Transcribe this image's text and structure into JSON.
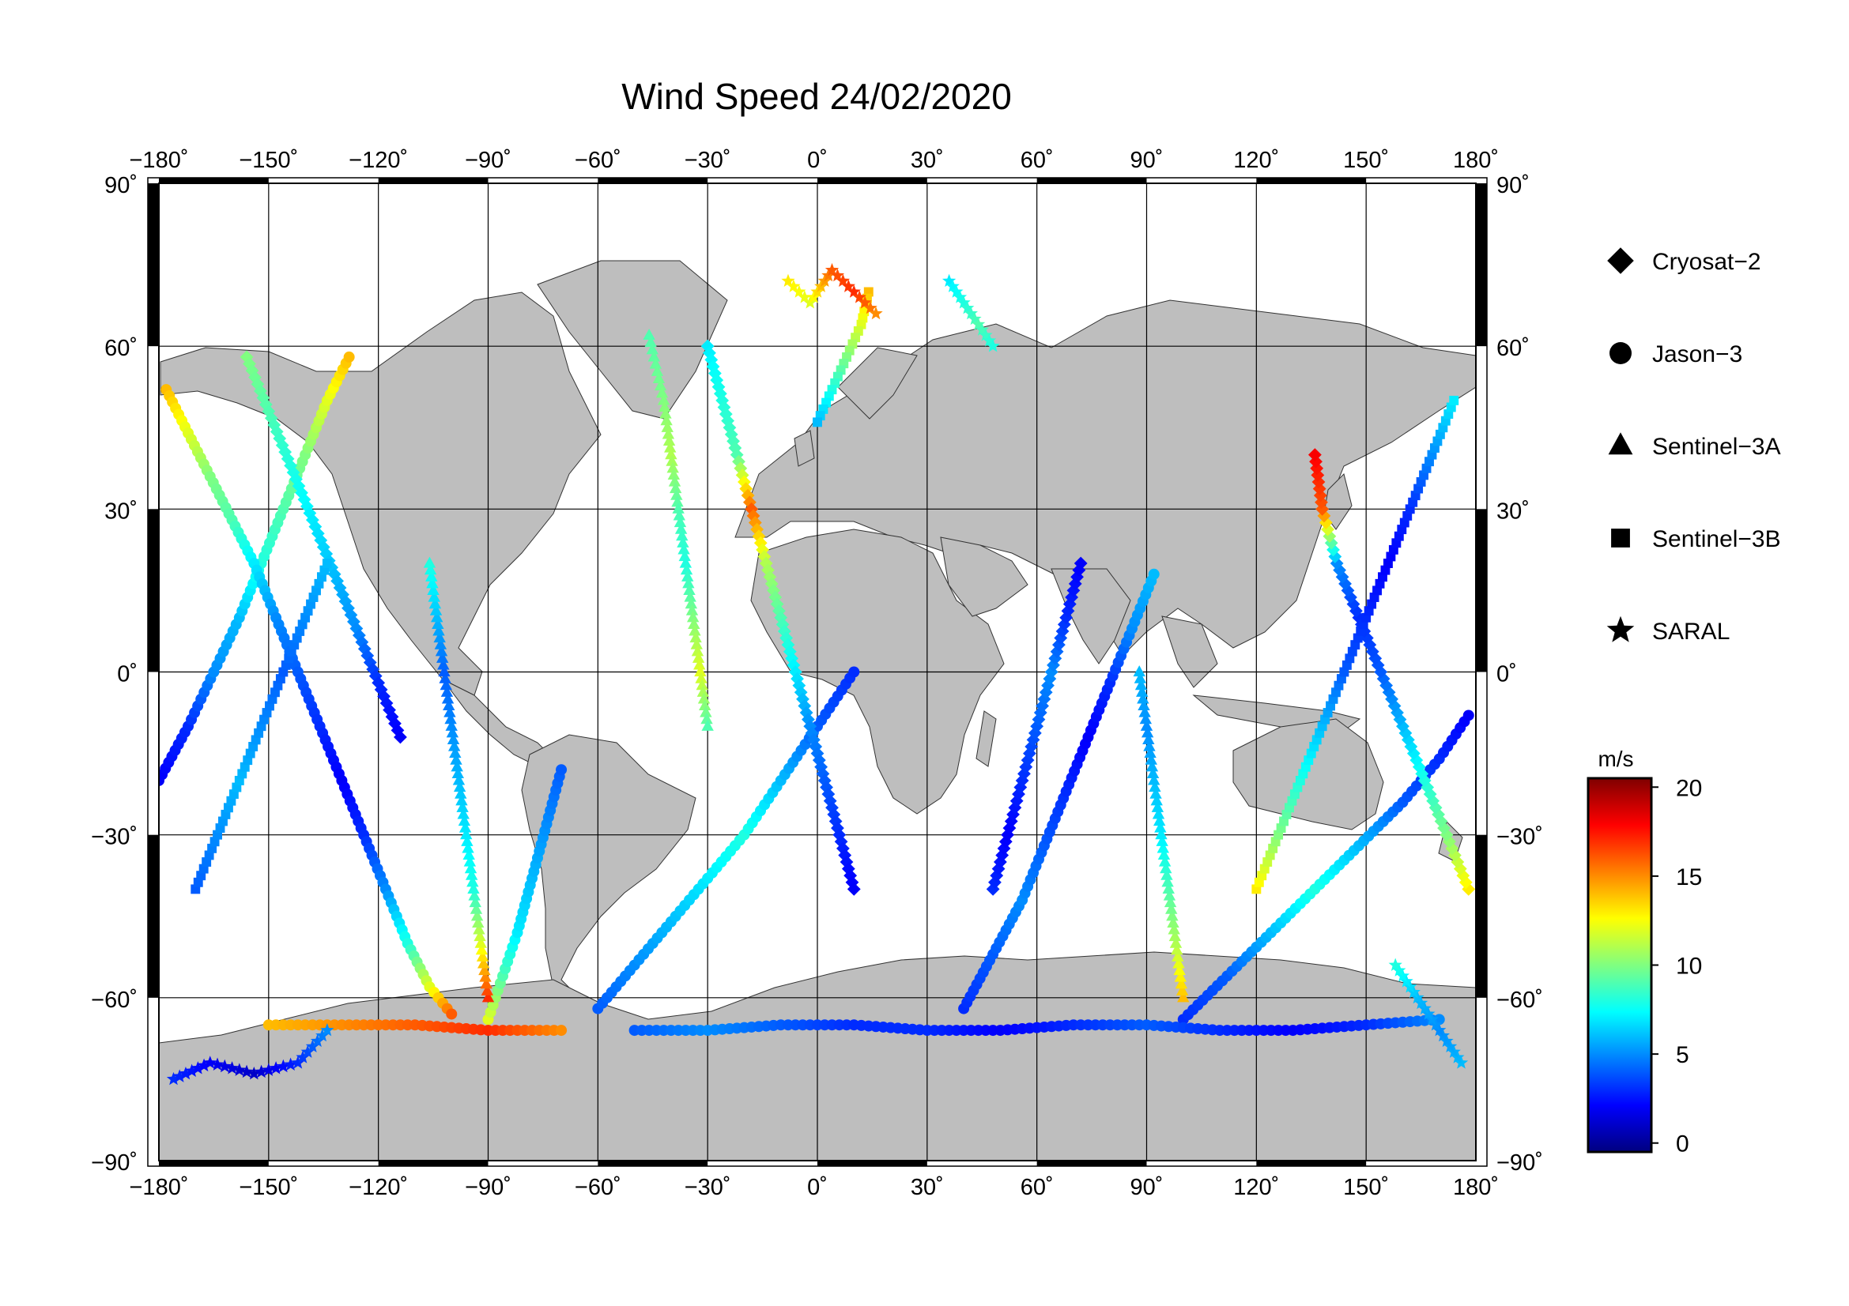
{
  "title": "Wind Speed 24/02/2020",
  "axes": {
    "lon_ticks": [
      "−180˚",
      "−150˚",
      "−120˚",
      "−90˚",
      "−60˚",
      "−30˚",
      "0˚",
      "30˚",
      "60˚",
      "90˚",
      "120˚",
      "150˚",
      "180˚"
    ],
    "lon_values": [
      -180,
      -150,
      -120,
      -90,
      -60,
      -30,
      0,
      30,
      60,
      90,
      120,
      150,
      180
    ],
    "lat_ticks": [
      "90˚",
      "60˚",
      "30˚",
      "0˚",
      "−30˚",
      "−60˚",
      "−90˚"
    ],
    "lat_values": [
      90,
      60,
      30,
      0,
      -30,
      -60,
      -90
    ],
    "lon_range": [
      -180,
      180
    ],
    "lat_range": [
      -90,
      90
    ],
    "grid": true
  },
  "legend": {
    "placement": "right",
    "items": [
      {
        "label": "Cryosat−2",
        "marker": "diamond"
      },
      {
        "label": "Jason−3",
        "marker": "circle"
      },
      {
        "label": "Sentinel−3A",
        "marker": "triangle"
      },
      {
        "label": "Sentinel−3B",
        "marker": "square"
      },
      {
        "label": "SARAL",
        "marker": "star"
      }
    ]
  },
  "colorbar": {
    "unit": "m/s",
    "ticks": [
      "0",
      "5",
      "10",
      "15",
      "20"
    ],
    "tick_values": [
      0,
      5,
      10,
      15,
      20
    ],
    "range": [
      -0.5,
      20.5
    ],
    "colormap": [
      "#00007f",
      "#0000ff",
      "#0080ff",
      "#00ffff",
      "#80ff80",
      "#ffff00",
      "#ff8000",
      "#ff0000",
      "#7f0000"
    ]
  },
  "colors": {
    "land": "#bebebe",
    "ocean": "#ffffff",
    "grid": "#000000",
    "frame": "#000000"
  },
  "chart_data": {
    "type": "scatter",
    "projection": "equirectangular",
    "x_label": "",
    "y_label": "",
    "tracks": [
      {
        "satellite": "Jason-3",
        "marker": "circle",
        "points": [
          [
            -180,
            -20,
            2
          ],
          [
            -172,
            -10,
            3
          ],
          [
            -165,
            0,
            5
          ],
          [
            -158,
            10,
            6
          ],
          [
            -152,
            20,
            8
          ],
          [
            -146,
            30,
            9
          ],
          [
            -140,
            40,
            10
          ],
          [
            -134,
            50,
            12
          ],
          [
            -128,
            58,
            14
          ]
        ]
      },
      {
        "satellite": "Jason-3",
        "marker": "circle",
        "points": [
          [
            -178,
            52,
            14
          ],
          [
            -172,
            44,
            12
          ],
          [
            -166,
            36,
            10
          ],
          [
            -160,
            28,
            9
          ],
          [
            -154,
            20,
            7
          ],
          [
            -148,
            10,
            5
          ],
          [
            -142,
            0,
            4
          ],
          [
            -136,
            -10,
            3
          ],
          [
            -130,
            -20,
            2
          ],
          [
            -124,
            -30,
            3
          ],
          [
            -118,
            -40,
            5
          ],
          [
            -112,
            -50,
            8
          ],
          [
            -106,
            -58,
            12
          ],
          [
            -100,
            -63,
            16
          ]
        ]
      },
      {
        "satellite": "Jason-3",
        "marker": "circle",
        "points": [
          [
            -90,
            -64,
            12
          ],
          [
            -86,
            -56,
            9
          ],
          [
            -82,
            -48,
            7
          ],
          [
            -78,
            -38,
            6
          ],
          [
            -74,
            -28,
            5
          ],
          [
            -70,
            -18,
            4
          ]
        ]
      },
      {
        "satellite": "Jason-3",
        "marker": "circle",
        "points": [
          [
            -60,
            -62,
            4
          ],
          [
            -50,
            -54,
            5
          ],
          [
            -40,
            -46,
            6
          ],
          [
            -30,
            -38,
            7
          ],
          [
            -20,
            -30,
            8
          ],
          [
            -10,
            -20,
            6
          ],
          [
            0,
            -10,
            4
          ],
          [
            10,
            0,
            3
          ]
        ]
      },
      {
        "satellite": "Jason-3",
        "marker": "circle",
        "points": [
          [
            40,
            -62,
            3
          ],
          [
            48,
            -52,
            4
          ],
          [
            56,
            -42,
            5
          ],
          [
            62,
            -32,
            4
          ],
          [
            68,
            -22,
            3
          ],
          [
            74,
            -12,
            2
          ],
          [
            80,
            -2,
            3
          ],
          [
            86,
            8,
            5
          ],
          [
            92,
            18,
            6
          ]
        ]
      },
      {
        "satellite": "Jason-3",
        "marker": "circle",
        "points": [
          [
            100,
            -64,
            3
          ],
          [
            112,
            -56,
            4
          ],
          [
            124,
            -48,
            6
          ],
          [
            136,
            -40,
            8
          ],
          [
            148,
            -32,
            6
          ],
          [
            160,
            -24,
            4
          ],
          [
            170,
            -16,
            3
          ],
          [
            178,
            -8,
            2
          ]
        ]
      },
      {
        "satellite": "Jason-3",
        "marker": "circle",
        "points": [
          [
            -150,
            -65,
            14
          ],
          [
            -130,
            -65,
            15
          ],
          [
            -110,
            -65,
            16
          ],
          [
            -90,
            -66,
            17
          ],
          [
            -70,
            -66,
            15
          ]
        ]
      },
      {
        "satellite": "Jason-3",
        "marker": "circle",
        "points": [
          [
            -50,
            -66,
            4
          ],
          [
            -30,
            -66,
            5
          ],
          [
            -10,
            -65,
            4
          ],
          [
            10,
            -65,
            3
          ],
          [
            30,
            -66,
            3
          ],
          [
            50,
            -66,
            2
          ],
          [
            70,
            -65,
            3
          ],
          [
            90,
            -65,
            4
          ],
          [
            110,
            -66,
            3
          ],
          [
            130,
            -66,
            2
          ],
          [
            150,
            -65,
            3
          ],
          [
            170,
            -64,
            5
          ]
        ]
      },
      {
        "satellite": "Cryosat-2",
        "marker": "diamond",
        "points": [
          [
            -156,
            58,
            10
          ],
          [
            -150,
            48,
            9
          ],
          [
            -144,
            38,
            8
          ],
          [
            -138,
            28,
            7
          ],
          [
            -132,
            18,
            6
          ],
          [
            -126,
            8,
            5
          ],
          [
            -120,
            -2,
            3
          ],
          [
            -114,
            -12,
            2
          ]
        ]
      },
      {
        "satellite": "Cryosat-2",
        "marker": "diamond",
        "points": [
          [
            -30,
            60,
            7
          ],
          [
            -26,
            50,
            8
          ],
          [
            -22,
            40,
            9
          ],
          [
            -18,
            30,
            16
          ],
          [
            -14,
            20,
            11
          ],
          [
            -10,
            10,
            9
          ],
          [
            -6,
            0,
            7
          ],
          [
            -2,
            -10,
            5
          ],
          [
            2,
            -20,
            4
          ],
          [
            6,
            -30,
            3
          ],
          [
            10,
            -40,
            2
          ]
        ]
      },
      {
        "satellite": "Cryosat-2",
        "marker": "diamond",
        "points": [
          [
            48,
            -40,
            3
          ],
          [
            52,
            -30,
            2
          ],
          [
            56,
            -20,
            3
          ],
          [
            60,
            -10,
            4
          ],
          [
            64,
            0,
            5
          ],
          [
            68,
            10,
            3
          ],
          [
            72,
            20,
            2
          ]
        ]
      },
      {
        "satellite": "Cryosat-2",
        "marker": "diamond",
        "points": [
          [
            178,
            -40,
            13
          ],
          [
            172,
            -30,
            10
          ],
          [
            166,
            -20,
            8
          ],
          [
            160,
            -10,
            6
          ],
          [
            154,
            0,
            4
          ],
          [
            148,
            10,
            3
          ],
          [
            142,
            20,
            5
          ],
          [
            138,
            30,
            16
          ],
          [
            136,
            40,
            18
          ]
        ]
      },
      {
        "satellite": "Sentinel-3A",
        "marker": "triangle",
        "points": [
          [
            -90,
            -60,
            17
          ],
          [
            -92,
            -50,
            12
          ],
          [
            -94,
            -40,
            8
          ],
          [
            -96,
            -30,
            7
          ],
          [
            -98,
            -20,
            6
          ],
          [
            -100,
            -10,
            5
          ],
          [
            -102,
            0,
            4
          ],
          [
            -104,
            10,
            6
          ],
          [
            -106,
            20,
            8
          ]
        ]
      },
      {
        "satellite": "Sentinel-3A",
        "marker": "triangle",
        "points": [
          [
            -46,
            62,
            9
          ],
          [
            -42,
            50,
            10
          ],
          [
            -40,
            40,
            11
          ],
          [
            -38,
            30,
            9
          ],
          [
            -36,
            20,
            8
          ],
          [
            -34,
            10,
            10
          ],
          [
            -32,
            0,
            12
          ],
          [
            -30,
            -10,
            9
          ]
        ]
      },
      {
        "satellite": "Sentinel-3A",
        "marker": "triangle",
        "points": [
          [
            100,
            -60,
            14
          ],
          [
            98,
            -50,
            11
          ],
          [
            96,
            -40,
            9
          ],
          [
            94,
            -30,
            7
          ],
          [
            92,
            -20,
            6
          ],
          [
            90,
            -10,
            5
          ],
          [
            88,
            0,
            6
          ]
        ]
      },
      {
        "satellite": "Sentinel-3B",
        "marker": "square",
        "points": [
          [
            -170,
            -40,
            4
          ],
          [
            -164,
            -30,
            5
          ],
          [
            -158,
            -20,
            6
          ],
          [
            -152,
            -10,
            5
          ],
          [
            -146,
            0,
            4
          ],
          [
            -140,
            10,
            5
          ],
          [
            -134,
            20,
            6
          ]
        ]
      },
      {
        "satellite": "Sentinel-3B",
        "marker": "square",
        "points": [
          [
            14,
            70,
            14
          ],
          [
            12,
            64,
            12
          ],
          [
            8,
            58,
            10
          ],
          [
            4,
            52,
            8
          ],
          [
            0,
            46,
            6
          ]
        ]
      },
      {
        "satellite": "Sentinel-3B",
        "marker": "square",
        "points": [
          [
            120,
            -40,
            13
          ],
          [
            126,
            -30,
            10
          ],
          [
            132,
            -20,
            8
          ],
          [
            138,
            -10,
            6
          ],
          [
            144,
            0,
            4
          ],
          [
            150,
            10,
            3
          ],
          [
            156,
            20,
            2
          ],
          [
            162,
            30,
            3
          ],
          [
            168,
            40,
            5
          ],
          [
            174,
            50,
            7
          ]
        ]
      },
      {
        "satellite": "SARAL",
        "marker": "star",
        "points": [
          [
            -176,
            -75,
            3
          ],
          [
            -166,
            -72,
            2
          ],
          [
            -154,
            -74,
            1
          ],
          [
            -142,
            -72,
            3
          ],
          [
            -134,
            -66,
            5
          ]
        ]
      },
      {
        "satellite": "SARAL",
        "marker": "star",
        "points": [
          [
            -8,
            72,
            13
          ],
          [
            -2,
            68,
            12
          ],
          [
            4,
            74,
            16
          ],
          [
            10,
            70,
            17
          ],
          [
            16,
            66,
            15
          ]
        ]
      },
      {
        "satellite": "SARAL",
        "marker": "star",
        "points": [
          [
            36,
            72,
            7
          ],
          [
            40,
            68,
            8
          ],
          [
            44,
            64,
            9
          ],
          [
            48,
            60,
            8
          ]
        ]
      },
      {
        "satellite": "SARAL",
        "marker": "star",
        "points": [
          [
            176,
            -72,
            6
          ],
          [
            170,
            -66,
            5
          ],
          [
            164,
            -60,
            6
          ],
          [
            158,
            -54,
            8
          ]
        ]
      }
    ]
  }
}
